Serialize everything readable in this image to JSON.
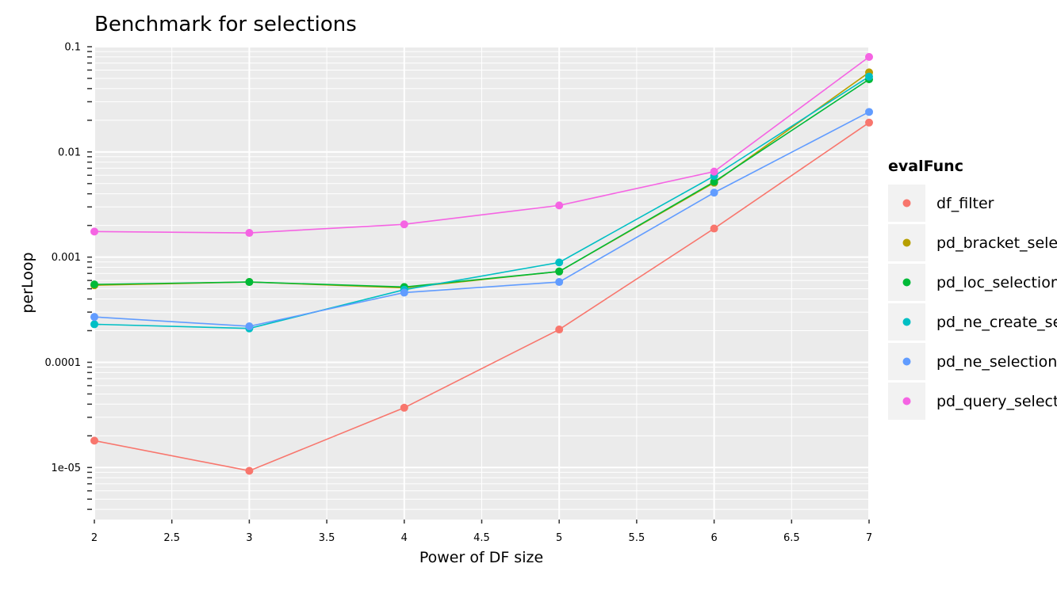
{
  "chart_data": {
    "type": "line",
    "title": "Benchmark for selections",
    "xlabel": "Power of DF size",
    "ylabel": "perLoop",
    "xlim": [
      2,
      7
    ],
    "ylim": [
      3.2e-06,
      0.1
    ],
    "yscale": "log10",
    "x": [
      2,
      3,
      4,
      5,
      6,
      7
    ],
    "x_ticks": [
      2,
      2.5,
      3,
      3.5,
      4,
      4.5,
      5,
      5.5,
      6,
      6.5,
      7
    ],
    "x_tick_labels": [
      "2",
      "2.5",
      "3",
      "3.5",
      "4",
      "4.5",
      "5",
      "5.5",
      "6",
      "6.5",
      "7"
    ],
    "y_ticks": [
      0.1,
      0.01,
      0.001,
      0.0001,
      1e-05
    ],
    "y_tick_labels": [
      "0.1",
      "0.01",
      "0.001",
      "0.0001",
      "1e-05"
    ],
    "grid": true,
    "legend": {
      "title": "evalFunc",
      "position": "right"
    },
    "series": [
      {
        "name": "df_filter",
        "color": "#F8766D",
        "values": [
          1.8e-05,
          9.3e-06,
          3.7e-05,
          0.000205,
          0.00187,
          0.019
        ]
      },
      {
        "name": "pd_bracket_selection",
        "color": "#B79F00",
        "values": [
          0.00054,
          0.00058,
          0.00051,
          0.00073,
          0.0051,
          0.057
        ]
      },
      {
        "name": "pd_loc_selection",
        "color": "#00BA38",
        "values": [
          0.00055,
          0.00058,
          0.00052,
          0.00073,
          0.0052,
          0.049
        ]
      },
      {
        "name": "pd_ne_create_selection",
        "color": "#00BFC4",
        "values": [
          0.00023,
          0.00021,
          0.00049,
          0.00089,
          0.0059,
          0.052
        ]
      },
      {
        "name": "pd_ne_selection",
        "color": "#619CFF",
        "values": [
          0.00027,
          0.00022,
          0.00046,
          0.00058,
          0.0041,
          0.024
        ]
      },
      {
        "name": "pd_query_selection",
        "color": "#F564E3",
        "values": [
          0.00175,
          0.0017,
          0.00205,
          0.0031,
          0.0065,
          0.08
        ]
      }
    ]
  }
}
